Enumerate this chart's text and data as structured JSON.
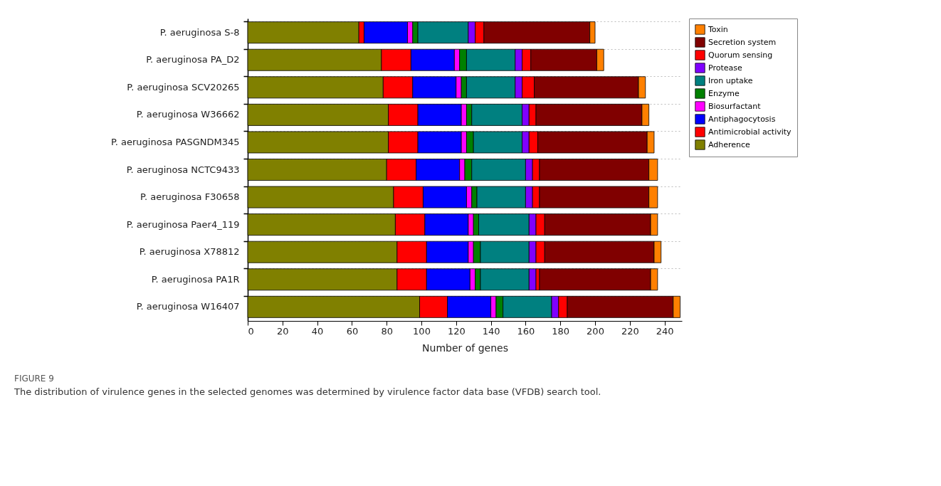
{
  "chart_data": {
    "type": "bar",
    "orientation": "horizontal",
    "stacked": true,
    "xlabel": "Number of genes",
    "categories": [
      "P. aeruginosa S-8",
      "P. aeruginosa PA_D2",
      "P. aeruginosa SCV20265",
      "P. aeruginosa W36662",
      "P. aeruginosa PASGNDM345",
      "P. aeruginosa NCTC9433",
      "P. aeruginosa F30658",
      "P. aeruginosa Paer4_119",
      "P. aeruginosa X78812",
      "P. aeruginosa PA1R",
      "P. aeruginosa W16407"
    ],
    "series": [
      {
        "name": "Adherence",
        "color": "#808000",
        "values": [
          64,
          77,
          78,
          81,
          81,
          80,
          84,
          85,
          86,
          86,
          99
        ]
      },
      {
        "name": "Antimicrobial activity",
        "color": "#ff0000",
        "values": [
          3,
          17,
          17,
          17,
          17,
          17,
          17,
          17,
          17,
          17,
          16
        ]
      },
      {
        "name": "Antiphagocytosis",
        "color": "#0000ff",
        "values": [
          25,
          25,
          25,
          25,
          25,
          25,
          25,
          25,
          24,
          25,
          25
        ]
      },
      {
        "name": "Biosurfactant",
        "color": "#ff00ff",
        "values": [
          3,
          3,
          3,
          3,
          3,
          3,
          3,
          3,
          3,
          3,
          3
        ]
      },
      {
        "name": "Enzyme",
        "color": "#008000",
        "values": [
          3,
          4,
          3,
          3,
          4,
          4,
          3,
          3,
          4,
          3,
          4
        ]
      },
      {
        "name": "Iron uptake",
        "color": "#008080",
        "values": [
          29,
          28,
          28,
          29,
          28,
          31,
          28,
          29,
          28,
          28,
          28
        ]
      },
      {
        "name": "Protease",
        "color": "#8000ff",
        "values": [
          4,
          4,
          4,
          4,
          4,
          4,
          4,
          4,
          4,
          4,
          4
        ]
      },
      {
        "name": "Quorum sensing",
        "color": "#ff0000",
        "values": [
          5,
          5,
          7,
          4,
          5,
          4,
          4,
          5,
          5,
          2,
          5
        ]
      },
      {
        "name": "Secretion system",
        "color": "#800000",
        "values": [
          61,
          38,
          60,
          61,
          63,
          63,
          63,
          61,
          63,
          64,
          61
        ]
      },
      {
        "name": "Toxin",
        "color": "#ff8000",
        "values": [
          3,
          4,
          4,
          4,
          4,
          5,
          5,
          4,
          4,
          4,
          4
        ]
      }
    ],
    "xlim": [
      0,
      250
    ],
    "xticks": [
      0,
      20,
      40,
      60,
      80,
      100,
      120,
      140,
      160,
      180,
      200,
      220,
      240
    ],
    "grid": "y",
    "legend": "top right",
    "annotations": [
      "FIGURE 9",
      "The distribution of virulence genes in the selected genomes was determined by virulence factor data base (VFDB) search tool."
    ]
  }
}
